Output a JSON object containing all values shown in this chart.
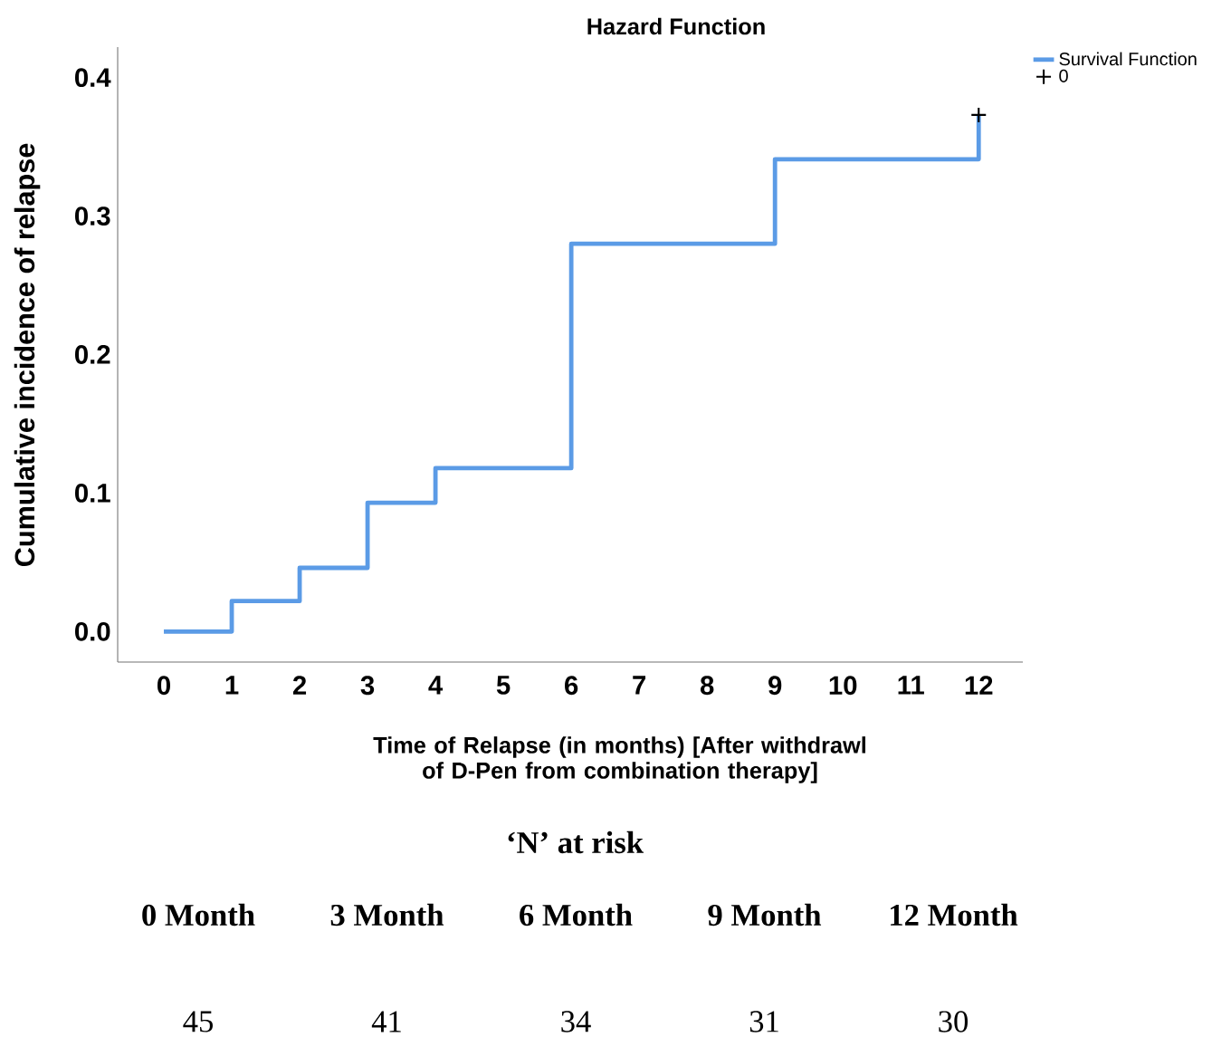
{
  "chart_data": {
    "type": "step",
    "title": "Hazard Function",
    "xlabel": "Time  of Relapse (in months) [After withdrawl of D-Pen from combination therapy]",
    "ylabel": "Cumulative incidence of relapse",
    "series": [
      {
        "name": "Survival Function",
        "color": "#5b9be6",
        "marker": "none",
        "x": [
          0,
          1,
          2,
          3,
          4,
          6,
          9,
          12
        ],
        "values": [
          0,
          0.022,
          0.046,
          0.093,
          0.118,
          0.28,
          0.341,
          0.373
        ]
      },
      {
        "name": "0",
        "type": "scatter",
        "color": "#000000",
        "marker": "cross",
        "x": [
          12
        ],
        "values": [
          0.373
        ]
      }
    ],
    "xlim": [
      -0.68,
      12.65
    ],
    "ylim": [
      -0.022,
      0.422
    ],
    "xticks": [
      0,
      1,
      2,
      3,
      4,
      5,
      6,
      7,
      8,
      9,
      10,
      11,
      12
    ],
    "yticks": [
      {
        "value": 0,
        "label": "0.0"
      },
      0.1,
      0.2,
      0.3,
      0.4
    ],
    "grid": false,
    "legend": "top right",
    "annotations": [
      "‘N’ at risk",
      "0 Month",
      "3 Month",
      "6 Month",
      "9 Month",
      "12 Month",
      "45",
      "41",
      "34",
      "31",
      "30"
    ]
  }
}
